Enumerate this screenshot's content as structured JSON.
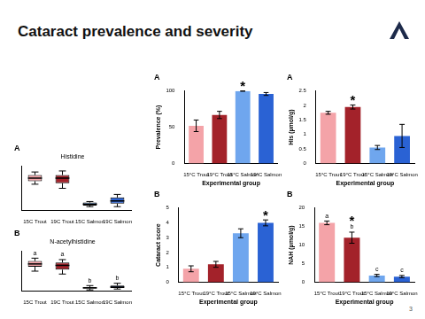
{
  "slide": {
    "title": "Cataract prevalence and severity",
    "page_number": "3"
  },
  "chart_data": [
    {
      "type": "boxplot",
      "panel": "A",
      "title": "Histidine",
      "categories": [
        "15C Trout",
        "19C Trout",
        "15C Salmon",
        "19C Salmon"
      ],
      "colors": [
        "#f4a3a8",
        "#a3222a",
        "#6fa6ee",
        "#2a62d4"
      ],
      "boxes": [
        {
          "min": 1.3,
          "q1": 1.45,
          "median": 1.6,
          "q3": 1.75,
          "max": 1.9
        },
        {
          "min": 1.1,
          "q1": 1.35,
          "median": 1.6,
          "q3": 1.75,
          "max": 1.95
        },
        {
          "min": 0.2,
          "q1": 0.25,
          "median": 0.32,
          "q3": 0.4,
          "max": 0.45
        },
        {
          "min": 0.2,
          "q1": 0.35,
          "median": 0.48,
          "q3": 0.65,
          "max": 0.8
        }
      ],
      "ylim": [
        0,
        2.2
      ],
      "tick_labels": "x",
      "grid": false
    },
    {
      "type": "boxplot",
      "panel": "B",
      "title": "N-acetylhistidine",
      "categories": [
        "15C Trout",
        "19C Trout",
        "15C Salmon",
        "19C Salmon"
      ],
      "colors": [
        "#f4a3a8",
        "#a3222a",
        "#6fa6ee",
        "#2a62d4"
      ],
      "boxes": [
        {
          "min": 0.7,
          "q1": 0.85,
          "median": 0.95,
          "q3": 1.05,
          "max": 1.15
        },
        {
          "min": 0.6,
          "q1": 0.75,
          "median": 0.9,
          "q3": 1.0,
          "max": 1.1
        },
        {
          "min": 0.05,
          "q1": 0.1,
          "median": 0.12,
          "q3": 0.15,
          "max": 0.2
        },
        {
          "min": 0.08,
          "q1": 0.12,
          "median": 0.15,
          "q3": 0.2,
          "max": 0.28
        }
      ],
      "annotations": [
        {
          "category": "15C Trout",
          "text": "a"
        },
        {
          "category": "19C Trout",
          "text": "a"
        },
        {
          "category": "15C Salmon",
          "text": "b"
        },
        {
          "category": "19C Salmon",
          "text": "b"
        }
      ],
      "ylim": [
        0,
        1.4
      ],
      "tick_labels": "x",
      "grid": false
    },
    {
      "type": "bar",
      "panel": "A",
      "x_label": "Experimental group",
      "y_label": "Prevalence (%)",
      "categories": [
        "15°C Trout",
        "19°C Trout",
        "15°C Salmon",
        "19°C Salmon"
      ],
      "colors": [
        "#f4a3a8",
        "#a3222a",
        "#6fa6ee",
        "#2a62d4"
      ],
      "values": [
        52,
        67,
        100,
        96
      ],
      "errors": [
        8,
        5,
        0,
        2
      ],
      "annotations": [
        {
          "category": "15°C Salmon",
          "text": "*"
        }
      ],
      "ylim": [
        0,
        100
      ],
      "yticks": [
        0,
        50,
        100
      ],
      "grid": false
    },
    {
      "type": "bar",
      "panel": "B",
      "x_label": "Experimental group",
      "y_label": "Cataract score",
      "categories": [
        "15°C Trout",
        "19°C Trout",
        "15°C Salmon",
        "19°C Salmon"
      ],
      "colors": [
        "#f4a3a8",
        "#a3222a",
        "#6fa6ee",
        "#2a62d4"
      ],
      "values": [
        0.9,
        1.2,
        3.3,
        4.0
      ],
      "errors": [
        0.2,
        0.2,
        0.3,
        0.2
      ],
      "annotations": [
        {
          "category": "19°C Salmon",
          "text": "*"
        }
      ],
      "ylim": [
        0,
        5
      ],
      "yticks": [
        0,
        1,
        2,
        3,
        4,
        5
      ],
      "grid": false
    },
    {
      "type": "bar",
      "panel": "A",
      "x_label": "Experimental group",
      "y_label": "His (µmol/g)",
      "categories": [
        "15°C Trout",
        "19°C Trout",
        "15°C Salmon",
        "19°C Salmon"
      ],
      "colors": [
        "#f4a3a8",
        "#a3222a",
        "#6fa6ee",
        "#2a62d4"
      ],
      "values": [
        1.75,
        1.95,
        0.55,
        0.95
      ],
      "errors": [
        0.05,
        0.07,
        0.07,
        0.4
      ],
      "annotations": [
        {
          "category": "19°C Trout",
          "text": "*"
        }
      ],
      "ylim": [
        0,
        2.5
      ],
      "yticks": [
        0,
        0.5,
        1,
        1.5,
        2,
        2.5
      ],
      "grid": false
    },
    {
      "type": "bar",
      "panel": "B",
      "x_label": "Experimental group",
      "y_label": "NAH (µmol/g)",
      "categories": [
        "15°C Trout",
        "19°C Trout",
        "15°C Salmon",
        "19°C Salmon"
      ],
      "colors": [
        "#f4a3a8",
        "#a3222a",
        "#6fa6ee",
        "#2a62d4"
      ],
      "values": [
        16,
        12,
        1.8,
        1.5
      ],
      "errors": [
        0.5,
        1.5,
        0.3,
        0.3
      ],
      "annotations": [
        {
          "category": "15°C Trout",
          "text": "a"
        },
        {
          "category": "19°C Trout",
          "text": "b"
        },
        {
          "category": "19°C Trout",
          "text": "*"
        },
        {
          "category": "15°C Salmon",
          "text": "c"
        },
        {
          "category": "19°C Salmon",
          "text": "c"
        }
      ],
      "ylim": [
        0,
        20
      ],
      "yticks": [
        0,
        5,
        10,
        15,
        20
      ],
      "grid": false
    }
  ]
}
